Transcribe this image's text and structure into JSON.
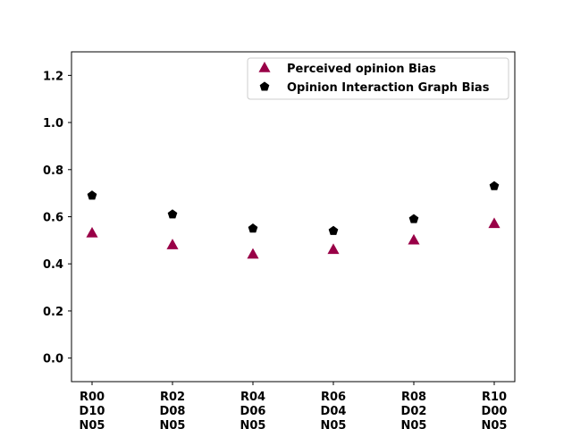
{
  "chart_data": {
    "type": "scatter",
    "categories": [
      [
        "R00",
        "D10",
        "N05"
      ],
      [
        "R02",
        "D08",
        "N05"
      ],
      [
        "R04",
        "D06",
        "N05"
      ],
      [
        "R06",
        "D04",
        "N05"
      ],
      [
        "R08",
        "D02",
        "N05"
      ],
      [
        "R10",
        "D00",
        "N05"
      ]
    ],
    "series": [
      {
        "name": "Perceived opinion Bias",
        "marker": "triangle",
        "color": "#990047",
        "values": [
          0.53,
          0.48,
          0.44,
          0.46,
          0.5,
          0.57
        ]
      },
      {
        "name": "Opinion Interaction Graph Bias",
        "marker": "pentagon",
        "color": "#000000",
        "values": [
          0.69,
          0.61,
          0.55,
          0.54,
          0.59,
          0.73
        ]
      }
    ],
    "ylim": [
      -0.1,
      1.3
    ],
    "yticks": [
      "0.0",
      "0.2",
      "0.4",
      "0.6",
      "0.8",
      "1.0",
      "1.2"
    ],
    "title": "",
    "xlabel": "",
    "ylabel": "",
    "grid": false,
    "legend_position": "top-right"
  }
}
